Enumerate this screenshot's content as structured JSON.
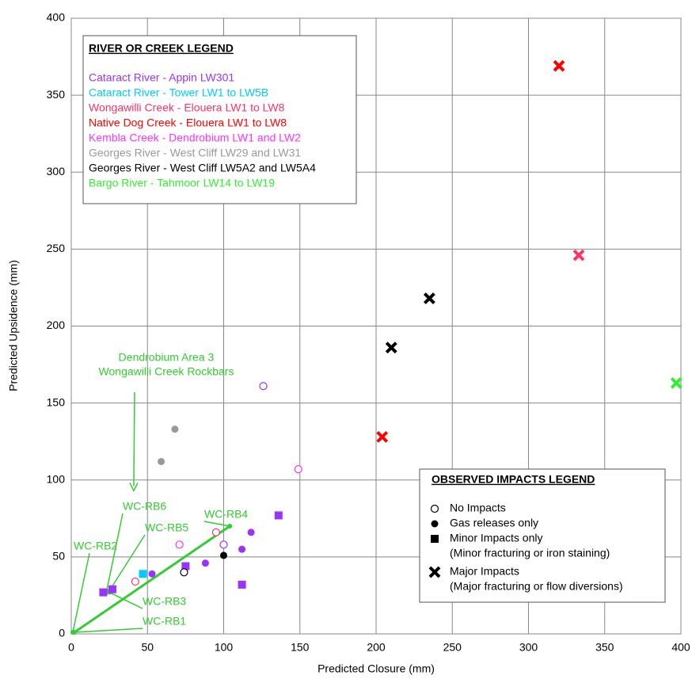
{
  "chart_data": {
    "type": "scatter",
    "xlabel": "Predicted Closure (mm)",
    "ylabel": "Predicted Upsidence (mm)",
    "xlim": [
      0,
      400
    ],
    "ylim": [
      0,
      400
    ],
    "xticks": [
      0,
      50,
      100,
      150,
      200,
      250,
      300,
      350,
      400
    ],
    "yticks": [
      0,
      50,
      100,
      150,
      200,
      250,
      300,
      350,
      400
    ],
    "grid": true,
    "legend_title": "RIVER OR CREEK LEGEND",
    "series": [
      {
        "name": "Cataract River - Appin LW301",
        "color": "#9933ff",
        "x": [
          126,
          118,
          112,
          88,
          53,
          100,
          136,
          112,
          75,
          21,
          27
        ],
        "y": [
          161,
          66,
          55,
          46,
          39,
          58,
          77,
          32,
          44,
          27,
          29
        ],
        "markers": [
          "open",
          "filled",
          "filled",
          "filled",
          "filled",
          "open",
          "square",
          "square",
          "square",
          "square",
          "square"
        ]
      },
      {
        "name": "Cataract River - Tower LW1 to LW5B",
        "color": "#00ccff",
        "x": [
          47
        ],
        "y": [
          39
        ],
        "markers": [
          "square"
        ]
      },
      {
        "name": "Wongawilli Creek - Elouera LW1 to LW8",
        "color": "#ff3366",
        "x": [
          333,
          95,
          42
        ],
        "y": [
          246,
          66,
          34
        ],
        "markers": [
          "x",
          "open",
          "open"
        ]
      },
      {
        "name": "Native Dog Creek - Elouera LW1 to LW8",
        "color": "#ff0000",
        "x": [
          320,
          204
        ],
        "y": [
          369,
          128
        ],
        "markers": [
          "x",
          "x"
        ]
      },
      {
        "name": "Kembla Creek - Dendrobium LW1 and LW2",
        "color": "#ff33ff",
        "x": [
          149,
          71
        ],
        "y": [
          107,
          58
        ],
        "markers": [
          "open",
          "open"
        ]
      },
      {
        "name": "Georges River - West Cliff LW29 and LW31",
        "color": "#999999",
        "x": [
          68,
          59
        ],
        "y": [
          133,
          112
        ],
        "markers": [
          "filled",
          "filled"
        ]
      },
      {
        "name": "Georges River - West Cliff LW5A2 and LW5A4",
        "color": "#000000",
        "x": [
          235,
          210,
          74,
          100
        ],
        "y": [
          218,
          186,
          40,
          51
        ],
        "markers": [
          "x",
          "x",
          "open",
          "filled"
        ]
      },
      {
        "name": "Bargo River - Tahmoor LW14 to LW19",
        "color": "#33ee33",
        "x": [
          397
        ],
        "y": [
          163
        ],
        "markers": [
          "x"
        ]
      }
    ],
    "impact_legend": {
      "title": "OBSERVED IMPACTS LEGEND",
      "items": [
        {
          "marker": "open",
          "label": "No Impacts"
        },
        {
          "marker": "filled",
          "label": "Gas releases only"
        },
        {
          "marker": "square",
          "label": "Minor Impacts only",
          "note": "(Minor fracturing or iron staining)"
        },
        {
          "marker": "x",
          "label": "Major Impacts",
          "note": "(Major fracturing or flow diversions)"
        }
      ]
    },
    "annotation": {
      "lines": [
        "Dendrobium Area 3",
        "Wongawilli Creek Rockbars"
      ],
      "x": 41,
      "y": 93
    },
    "rockbars": {
      "color": "#33cc33",
      "labels": [
        "WC-RB1",
        "WC-RB2",
        "WC-RB3",
        "WC-RB4",
        "WC-RB5",
        "WC-RB6"
      ],
      "x": [
        2,
        1,
        25,
        104,
        25,
        23
      ],
      "y": [
        1,
        1,
        27,
        70,
        28,
        27
      ]
    }
  }
}
